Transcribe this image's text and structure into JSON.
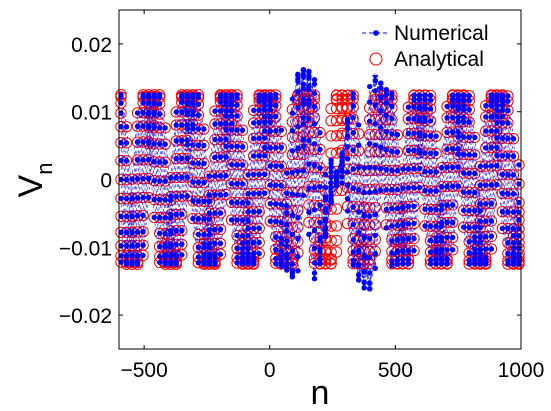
{
  "chart_data": {
    "type": "scatter",
    "title": "",
    "xlabel": "n",
    "ylabel_main": "V",
    "ylabel_sub": "n",
    "xlim": [
      -600,
      1000
    ],
    "ylim": [
      -0.025,
      0.025
    ],
    "xticks": [
      -500,
      0,
      500,
      1000
    ],
    "xtick_labels": [
      "−500",
      "0",
      "500",
      "1000"
    ],
    "yticks": [
      -0.02,
      -0.01,
      0,
      0.01,
      0.02
    ],
    "ytick_labels": [
      "−0.02",
      "−0.01",
      "0",
      "0.01",
      "0.02"
    ],
    "grid": false,
    "legend_position": "top-right",
    "amplitude": 0.0125,
    "x_step": 22,
    "phase_count": 14,
    "defect_bumps": [
      {
        "center": 140,
        "width": 60,
        "extra": 0.0038
      },
      {
        "center": 390,
        "width": 60,
        "extra": 0.0038
      }
    ],
    "defect_dip": {
      "center": 265,
      "width": 45,
      "depth": 0.0115
    },
    "series": [
      {
        "name": "Numerical",
        "style": "dashed-line-dots",
        "color": "#0000ff"
      },
      {
        "name": "Analytical",
        "style": "circles",
        "color": "#ff0000"
      }
    ]
  }
}
